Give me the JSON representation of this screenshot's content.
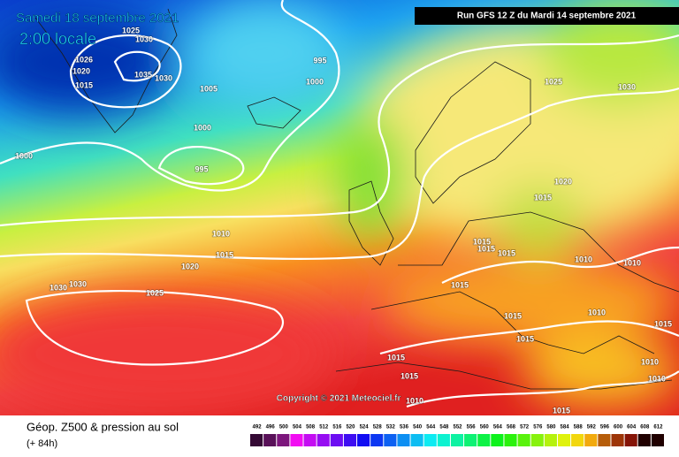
{
  "header": {
    "date": "Samedi 18 septembre 2021",
    "time": "2:00 locale",
    "run": "Run GFS 12 Z du Mardi 14 septembre 2021"
  },
  "copyright": "Copyright © 2021 Meteociel.fr",
  "footer": {
    "title": "Géop. Z500 & pression au sol",
    "lead": "(+ 84h)"
  },
  "isobar_labels": [
    1025,
    1030,
    1026,
    1035,
    1030,
    1020,
    1015,
    1005,
    995,
    1000,
    1000,
    995,
    1000,
    1010,
    1015,
    1020,
    1030,
    1030,
    1025,
    1025,
    1030,
    1020,
    1015,
    1015,
    1015,
    1015,
    1015,
    1010,
    1010,
    1015,
    1010,
    1015,
    1015,
    1015,
    1010,
    1015,
    1010,
    1010,
    1015
  ],
  "scale_labels": [
    492,
    496,
    500,
    504,
    508,
    512,
    516,
    520,
    524,
    528,
    532,
    536,
    540,
    544,
    548,
    552,
    556,
    560,
    564,
    568,
    572,
    576,
    580,
    584,
    588,
    592,
    596,
    600,
    604,
    608,
    612
  ]
}
